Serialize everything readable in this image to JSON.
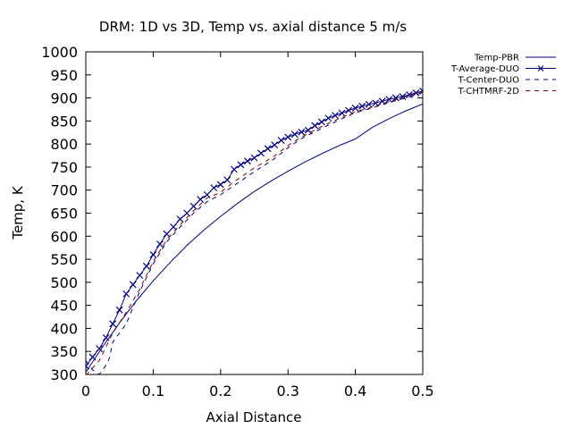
{
  "chart_data": {
    "type": "line",
    "title": "DRM: 1D vs 3D, Temp vs. axial distance 5 m/s",
    "xlabel": "Axial Distance",
    "ylabel": "Temp, K",
    "xlim": [
      0,
      0.5
    ],
    "ylim": [
      300,
      1000
    ],
    "x_ticks": [
      "0",
      "0.1",
      "0.2",
      "0.3",
      "0.4",
      "0.5"
    ],
    "y_ticks": [
      "300",
      "350",
      "400",
      "450",
      "500",
      "550",
      "600",
      "650",
      "700",
      "750",
      "800",
      "850",
      "900",
      "950",
      "1000"
    ],
    "grid": false,
    "legend_position": "outside-top-right",
    "series": [
      {
        "name": "Temp-PBR",
        "color": "#000080",
        "style": "solid",
        "x": [
          0,
          0.025,
          0.05,
          0.075,
          0.1,
          0.125,
          0.15,
          0.175,
          0.2,
          0.225,
          0.25,
          0.275,
          0.3,
          0.325,
          0.35,
          0.375,
          0.4,
          0.425,
          0.45,
          0.475,
          0.5
        ],
        "y": [
          305,
          360,
          412,
          460,
          503,
          543,
          580,
          613,
          643,
          671,
          697,
          720,
          741,
          761,
          779,
          796,
          811,
          836,
          855,
          872,
          887
        ]
      },
      {
        "name": "T-Average-DUO",
        "color": "#000080",
        "style": "solid-markers",
        "marker": "x",
        "x": [
          0,
          0.01,
          0.02,
          0.03,
          0.04,
          0.05,
          0.06,
          0.07,
          0.08,
          0.09,
          0.1,
          0.11,
          0.12,
          0.13,
          0.14,
          0.15,
          0.16,
          0.17,
          0.18,
          0.19,
          0.2,
          0.21,
          0.22,
          0.23,
          0.24,
          0.25,
          0.26,
          0.27,
          0.28,
          0.29,
          0.3,
          0.31,
          0.32,
          0.33,
          0.34,
          0.35,
          0.36,
          0.37,
          0.38,
          0.39,
          0.4,
          0.41,
          0.42,
          0.43,
          0.44,
          0.45,
          0.46,
          0.47,
          0.48,
          0.49,
          0.5
        ],
        "y": [
          318,
          338,
          356,
          380,
          410,
          440,
          475,
          495,
          515,
          535,
          560,
          583,
          605,
          620,
          637,
          650,
          665,
          680,
          690,
          705,
          712,
          722,
          745,
          755,
          763,
          770,
          780,
          790,
          798,
          808,
          815,
          821,
          826,
          830,
          840,
          848,
          856,
          862,
          867,
          873,
          878,
          882,
          886,
          889,
          893,
          897,
          900,
          903,
          907,
          911,
          915
        ]
      },
      {
        "name": "T-Center-DUO",
        "color": "#000080",
        "style": "dashed",
        "x": [
          0,
          0.01,
          0.02,
          0.025,
          0.03,
          0.035,
          0.04,
          0.05,
          0.06,
          0.07,
          0.08,
          0.1,
          0.12,
          0.14,
          0.16,
          0.18,
          0.2,
          0.22,
          0.25,
          0.28,
          0.3,
          0.32,
          0.35,
          0.38,
          0.4,
          0.42,
          0.45,
          0.48,
          0.5
        ],
        "y": [
          330,
          310,
          300,
          310,
          320,
          335,
          370,
          390,
          410,
          445,
          480,
          540,
          588,
          620,
          650,
          675,
          690,
          710,
          740,
          768,
          792,
          812,
          834,
          855,
          868,
          876,
          890,
          902,
          912
        ]
      },
      {
        "name": "T-CHTMRF-2D",
        "color": "#800000",
        "style": "dashed",
        "x": [
          0,
          0.02,
          0.04,
          0.06,
          0.08,
          0.1,
          0.12,
          0.14,
          0.16,
          0.18,
          0.2,
          0.22,
          0.25,
          0.28,
          0.3,
          0.32,
          0.35,
          0.38,
          0.4,
          0.42,
          0.45,
          0.48,
          0.5
        ],
        "y": [
          298,
          330,
          390,
          435,
          485,
          545,
          592,
          625,
          655,
          683,
          695,
          718,
          748,
          774,
          797,
          815,
          838,
          858,
          870,
          878,
          892,
          905,
          913
        ]
      }
    ]
  }
}
